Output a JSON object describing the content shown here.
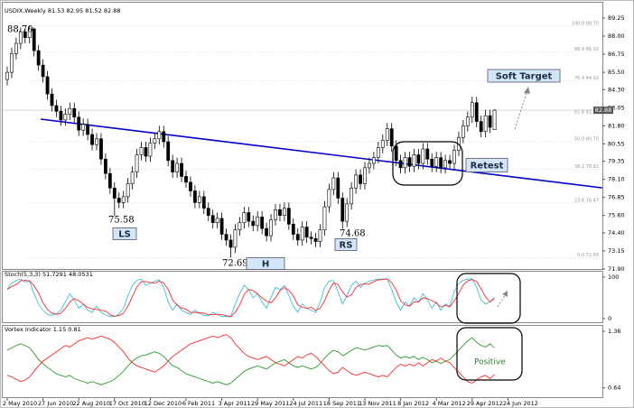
{
  "chart_data": [
    {
      "type": "candlestick",
      "title": "USDIX,Weekly  81.53 82.95 81.52 82.88",
      "ylim": [
        71.9,
        90.0
      ],
      "yticks": [
        89.25,
        {
          "value": 88.0,
          "label": "88.00"
        },
        86.75,
        {
          "value": 85.5,
          "label": "85.50"
        },
        {
          "value": 84.3,
          "label": "84.30"
        },
        83.05,
        {
          "value": 81.8,
          "label": "81.80"
        },
        80.55,
        79.35,
        {
          "value": 78.1,
          "label": "78.10"
        },
        76.85,
        {
          "value": 75.6,
          "label": "75.60"
        },
        {
          "value": 74.4,
          "label": "74.40"
        },
        73.15,
        {
          "value": 71.9,
          "label": "71.90"
        }
      ],
      "up_color": "#ffffff",
      "down_color": "#000000",
      "ohlc": [
        [
          85.0,
          85.9,
          84.6,
          85.5
        ],
        [
          85.5,
          87.2,
          85.1,
          86.8
        ],
        [
          86.8,
          87.9,
          86.4,
          87.5
        ],
        [
          87.5,
          88.6,
          87.1,
          88.3
        ],
        [
          88.3,
          88.5,
          87.5,
          87.9
        ],
        [
          87.9,
          88.7,
          87.5,
          88.5
        ],
        [
          88.5,
          88.6,
          86.6,
          87.0
        ],
        [
          87.0,
          87.4,
          85.6,
          86.0
        ],
        [
          86.0,
          86.4,
          84.8,
          85.2
        ],
        [
          85.2,
          85.6,
          83.6,
          84.0
        ],
        [
          84.0,
          84.4,
          82.8,
          83.2
        ],
        [
          83.2,
          83.6,
          82.4,
          82.8
        ],
        [
          82.8,
          83.2,
          81.8,
          82.2
        ],
        [
          82.2,
          83.0,
          81.8,
          82.6
        ],
        [
          82.6,
          83.4,
          82.2,
          83.0
        ],
        [
          83.0,
          83.4,
          82.0,
          82.4
        ],
        [
          82.4,
          82.8,
          81.1,
          81.5
        ],
        [
          81.5,
          82.3,
          81.1,
          81.9
        ],
        [
          81.9,
          82.3,
          80.8,
          81.2
        ],
        [
          81.2,
          81.6,
          80.1,
          80.5
        ],
        [
          80.5,
          81.3,
          80.1,
          80.9
        ],
        [
          80.9,
          81.3,
          79.1,
          79.5
        ],
        [
          79.5,
          79.9,
          78.1,
          78.5
        ],
        [
          78.5,
          78.9,
          77.1,
          77.5
        ],
        [
          77.5,
          77.9,
          75.58,
          76.8
        ],
        [
          76.8,
          77.2,
          76.1,
          76.5
        ],
        [
          76.5,
          77.3,
          76.1,
          76.9
        ],
        [
          76.9,
          78.2,
          76.5,
          77.8
        ],
        [
          77.8,
          79.0,
          77.4,
          78.6
        ],
        [
          78.6,
          80.2,
          78.2,
          79.8
        ],
        [
          79.8,
          80.7,
          79.4,
          80.3
        ],
        [
          80.3,
          80.7,
          79.3,
          79.7
        ],
        [
          79.7,
          81.0,
          79.3,
          80.6
        ],
        [
          80.6,
          81.3,
          80.2,
          80.9
        ],
        [
          80.9,
          81.8,
          80.5,
          81.4
        ],
        [
          81.4,
          81.8,
          80.3,
          80.7
        ],
        [
          80.7,
          81.1,
          79.0,
          79.4
        ],
        [
          79.4,
          79.8,
          78.2,
          78.6
        ],
        [
          78.6,
          79.6,
          78.2,
          79.2
        ],
        [
          79.2,
          79.6,
          77.9,
          78.3
        ],
        [
          78.3,
          78.7,
          77.5,
          77.9
        ],
        [
          77.9,
          78.3,
          76.9,
          77.3
        ],
        [
          77.3,
          77.7,
          76.1,
          76.5
        ],
        [
          76.5,
          77.3,
          76.1,
          76.9
        ],
        [
          76.9,
          77.3,
          75.7,
          76.1
        ],
        [
          76.1,
          76.5,
          75.2,
          75.6
        ],
        [
          75.6,
          76.0,
          74.7,
          75.1
        ],
        [
          75.1,
          75.8,
          74.7,
          75.4
        ],
        [
          75.4,
          75.8,
          73.9,
          74.3
        ],
        [
          74.3,
          74.7,
          73.5,
          73.9
        ],
        [
          73.9,
          74.3,
          72.69,
          73.4
        ],
        [
          73.4,
          75.0,
          73.0,
          74.6
        ],
        [
          74.6,
          75.5,
          74.2,
          75.1
        ],
        [
          75.1,
          76.2,
          74.7,
          75.8
        ],
        [
          75.8,
          76.2,
          74.8,
          75.2
        ],
        [
          75.2,
          75.6,
          74.5,
          74.9
        ],
        [
          74.9,
          75.9,
          74.5,
          75.5
        ],
        [
          75.5,
          75.9,
          74.3,
          74.7
        ],
        [
          74.7,
          75.1,
          73.8,
          74.2
        ],
        [
          74.2,
          75.7,
          73.8,
          75.3
        ],
        [
          75.3,
          76.4,
          74.9,
          76.0
        ],
        [
          76.0,
          76.4,
          75.2,
          75.6
        ],
        [
          75.6,
          76.5,
          75.2,
          76.1
        ],
        [
          76.1,
          76.5,
          74.6,
          75.0
        ],
        [
          75.0,
          75.4,
          73.9,
          74.3
        ],
        [
          74.3,
          74.7,
          73.5,
          73.9
        ],
        [
          73.9,
          75.2,
          73.5,
          74.8
        ],
        [
          74.8,
          75.2,
          73.7,
          74.1
        ],
        [
          74.1,
          74.5,
          73.6,
          74.0
        ],
        [
          74.0,
          74.4,
          73.4,
          73.8
        ],
        [
          73.8,
          75.0,
          73.4,
          74.6
        ],
        [
          74.6,
          76.6,
          74.2,
          76.2
        ],
        [
          76.2,
          77.8,
          75.8,
          77.4
        ],
        [
          77.4,
          78.6,
          77.0,
          78.2
        ],
        [
          78.2,
          78.6,
          76.4,
          76.8
        ],
        [
          76.8,
          77.2,
          74.68,
          75.2
        ],
        [
          75.2,
          76.8,
          74.8,
          76.4
        ],
        [
          76.4,
          77.9,
          76.0,
          77.5
        ],
        [
          77.5,
          78.8,
          77.1,
          78.4
        ],
        [
          78.4,
          78.8,
          77.4,
          77.8
        ],
        [
          77.8,
          79.3,
          77.4,
          78.9
        ],
        [
          78.9,
          79.6,
          78.5,
          79.2
        ],
        [
          79.2,
          80.0,
          78.8,
          79.6
        ],
        [
          79.6,
          80.7,
          79.2,
          80.3
        ],
        [
          80.3,
          81.2,
          79.9,
          80.8
        ],
        [
          80.8,
          82.0,
          80.4,
          81.6
        ],
        [
          81.6,
          82.0,
          80.0,
          80.4
        ],
        [
          80.4,
          80.8,
          79.0,
          79.4
        ],
        [
          79.4,
          79.8,
          78.5,
          78.9
        ],
        [
          78.9,
          80.0,
          78.5,
          79.6
        ],
        [
          79.6,
          80.0,
          78.6,
          79.0
        ],
        [
          79.0,
          80.2,
          78.6,
          79.8
        ],
        [
          79.8,
          80.2,
          78.8,
          79.2
        ],
        [
          79.2,
          80.6,
          78.8,
          80.2
        ],
        [
          80.2,
          80.6,
          79.1,
          79.5
        ],
        [
          79.5,
          79.9,
          78.6,
          79.0
        ],
        [
          79.0,
          80.0,
          78.6,
          79.6
        ],
        [
          79.6,
          80.0,
          78.5,
          78.9
        ],
        [
          78.9,
          79.8,
          78.5,
          79.4
        ],
        [
          79.4,
          79.8,
          78.8,
          79.2
        ],
        [
          79.2,
          80.5,
          78.8,
          80.1
        ],
        [
          80.1,
          81.4,
          79.7,
          81.0
        ],
        [
          81.0,
          82.2,
          80.6,
          81.8
        ],
        [
          81.8,
          82.8,
          81.4,
          82.4
        ],
        [
          82.4,
          83.8,
          82.0,
          83.4
        ],
        [
          83.4,
          83.8,
          81.7,
          82.1
        ],
        [
          82.1,
          82.5,
          81.0,
          81.4
        ],
        [
          81.4,
          82.9,
          81.0,
          82.5
        ],
        [
          82.5,
          82.9,
          81.3,
          81.7
        ],
        [
          81.53,
          82.95,
          81.52,
          82.88
        ]
      ],
      "fib_levels": [
        {
          "value": 88.7,
          "label": "100.0 88.70"
        },
        {
          "value": 86.92,
          "label": "88.9 86.92"
        },
        {
          "value": 84.92,
          "label": "76.4 84.92"
        },
        {
          "value": 82.58,
          "label": "61.8 82.58"
        },
        {
          "value": 80.7,
          "label": "50.0 80.70"
        },
        {
          "value": 78.81,
          "label": "38.2 78.81"
        },
        {
          "value": 76.47,
          "label": "23.6 76.47"
        },
        {
          "value": 72.69,
          "label": "0.0 72.69"
        }
      ],
      "trend_line": {
        "x": [
          7.5,
          133.1
        ],
        "y": [
          82.26,
          77.51
        ],
        "color": "#0000cc"
      },
      "annotations": [
        "88.70",
        "75.58",
        "LS",
        "72.69",
        "H",
        "74.68",
        "RS",
        "Soft Target",
        "Retest"
      ]
    },
    {
      "type": "line",
      "title": "Stoch(5,3,3) 51.7291 48.0531",
      "ylim": [
        -11,
        115
      ],
      "yticks": [
        100,
        0
      ],
      "series": [
        {
          "color": "#3fbfd8",
          "values": [
            70,
            85,
            92,
            95,
            88,
            90,
            60,
            35,
            20,
            10,
            8,
            12,
            20,
            40,
            60,
            45,
            25,
            35,
            20,
            15,
            30,
            15,
            8,
            5,
            5,
            10,
            25,
            55,
            80,
            92,
            95,
            80,
            85,
            90,
            94,
            75,
            40,
            20,
            35,
            20,
            15,
            10,
            20,
            12,
            8,
            6,
            15,
            10,
            5,
            5,
            5,
            35,
            60,
            80,
            70,
            50,
            60,
            40,
            25,
            50,
            75,
            70,
            80,
            55,
            30,
            15,
            35,
            25,
            20,
            15,
            40,
            75,
            90,
            92,
            65,
            35,
            55,
            80,
            90,
            75,
            85,
            90,
            93,
            95,
            95,
            96,
            70,
            40,
            20,
            40,
            30,
            50,
            40,
            60,
            45,
            25,
            40,
            20,
            35,
            30,
            65,
            85,
            92,
            95,
            96,
            75,
            45,
            35,
            40,
            51.7291
          ]
        },
        {
          "color": "#ff2a2a",
          "values": [
            70,
            77,
            82,
            91,
            92,
            91,
            79,
            62,
            38,
            22,
            13,
            10,
            13,
            24,
            40,
            48,
            43,
            35,
            27,
            23,
            22,
            20,
            18,
            9,
            6,
            7,
            13,
            30,
            53,
            76,
            89,
            89,
            87,
            85,
            90,
            86,
            70,
            45,
            32,
            25,
            23,
            15,
            15,
            14,
            13,
            9,
            10,
            10,
            10,
            7,
            5,
            15,
            33,
            58,
            70,
            67,
            60,
            50,
            42,
            38,
            50,
            67,
            75,
            68,
            55,
            33,
            27,
            25,
            27,
            20,
            25,
            43,
            68,
            86,
            82,
            64,
            52,
            57,
            75,
            82,
            83,
            83,
            89,
            93,
            94,
            95,
            87,
            69,
            43,
            33,
            30,
            40,
            40,
            50,
            48,
            43,
            37,
            28,
            32,
            28,
            43,
            60,
            81,
            91,
            94,
            89,
            72,
            52,
            40,
            48.0531
          ]
        }
      ]
    },
    {
      "type": "line",
      "title": "Vortex Indicator 1.15 0.81",
      "ylim": [
        0.51,
        1.43
      ],
      "yticks": [
        1.36,
        0.64
      ],
      "annotation": "Positive",
      "series": [
        {
          "color": "#2e9a2e",
          "values": [
            1.12,
            1.15,
            1.18,
            1.2,
            1.18,
            1.15,
            1.08,
            1.0,
            0.95,
            0.9,
            0.86,
            0.82,
            0.8,
            0.78,
            0.8,
            0.76,
            0.74,
            0.72,
            0.7,
            0.72,
            0.7,
            0.68,
            0.7,
            0.72,
            0.75,
            0.8,
            0.85,
            0.92,
            0.98,
            1.02,
            1.05,
            1.06,
            1.08,
            1.1,
            1.08,
            1.04,
            0.98,
            0.92,
            0.9,
            0.86,
            0.82,
            0.8,
            0.78,
            0.76,
            0.74,
            0.72,
            0.7,
            0.72,
            0.7,
            0.68,
            0.7,
            0.75,
            0.8,
            0.85,
            0.88,
            0.9,
            0.92,
            0.9,
            0.88,
            0.92,
            0.96,
            0.98,
            1.0,
            0.96,
            0.92,
            0.9,
            0.92,
            0.9,
            0.88,
            0.9,
            0.95,
            1.02,
            1.08,
            1.12,
            1.1,
            1.05,
            1.08,
            1.12,
            1.15,
            1.14,
            1.12,
            1.14,
            1.16,
            1.18,
            1.17,
            1.18,
            1.12,
            1.06,
            1.02,
            1.04,
            1.02,
            1.04,
            1.0,
            1.03,
            1.0,
            0.96,
            0.98,
            0.95,
            0.98,
            1.0,
            1.06,
            1.12,
            1.18,
            1.24,
            1.28,
            1.22,
            1.18,
            1.16,
            1.2,
            1.15
          ]
        },
        {
          "color": "#ff2a2a",
          "values": [
            0.8,
            0.78,
            0.75,
            0.72,
            0.74,
            0.78,
            0.85,
            0.92,
            0.98,
            1.02,
            1.06,
            1.1,
            1.14,
            1.18,
            1.16,
            1.2,
            1.24,
            1.26,
            1.28,
            1.26,
            1.28,
            1.3,
            1.28,
            1.26,
            1.22,
            1.16,
            1.1,
            1.02,
            0.96,
            0.92,
            0.9,
            0.88,
            0.86,
            0.84,
            0.88,
            0.92,
            0.98,
            1.04,
            1.08,
            1.12,
            1.16,
            1.2,
            1.22,
            1.24,
            1.26,
            1.28,
            1.3,
            1.28,
            1.3,
            1.32,
            1.28,
            1.2,
            1.14,
            1.08,
            1.04,
            1.02,
            1.0,
            1.02,
            1.04,
            1.0,
            0.96,
            0.94,
            0.92,
            0.96,
            1.0,
            1.04,
            1.02,
            1.06,
            1.08,
            1.04,
            0.98,
            0.92,
            0.86,
            0.82,
            0.84,
            0.9,
            0.86,
            0.82,
            0.8,
            0.82,
            0.84,
            0.82,
            0.8,
            0.78,
            0.8,
            0.78,
            0.84,
            0.9,
            0.94,
            0.92,
            0.94,
            0.92,
            0.96,
            0.92,
            0.96,
            1.0,
            0.98,
            1.02,
            0.98,
            0.96,
            0.9,
            0.84,
            0.78,
            0.72,
            0.7,
            0.74,
            0.78,
            0.8,
            0.76,
            0.81
          ]
        }
      ],
      "xticks": [
        "2 May 2010",
        "27 Jun 2010",
        "22 Aug 2010",
        "17 Oct 2010",
        "12 Dec 2010",
        "6 Feb 2011",
        "3 Apr 2011",
        "29 May 2011",
        "24 Jul 2011",
        "18 Sep 2011",
        "13 Nov 2011",
        "8 Jan 2012",
        "4 Mar 2012",
        "29 Apr 2012",
        "24 Jun 2012"
      ]
    }
  ]
}
